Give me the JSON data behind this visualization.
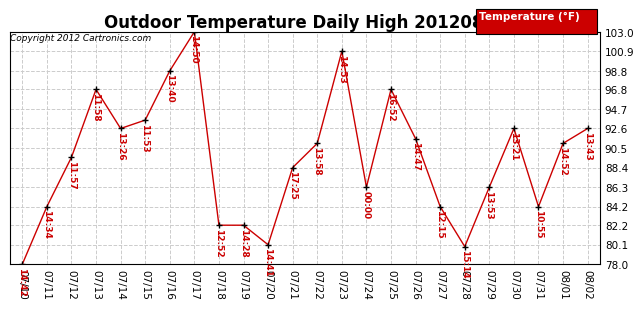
{
  "title": "Outdoor Temperature Daily High 20120803",
  "copyright": "Copyright 2012 Cartronics.com",
  "legend_label": "Temperature (°F)",
  "x_labels": [
    "07/10",
    "07/11",
    "07/12",
    "07/13",
    "07/14",
    "07/15",
    "07/16",
    "07/17",
    "07/18",
    "07/19",
    "07/20",
    "07/21",
    "07/22",
    "07/23",
    "07/24",
    "07/25",
    "07/26",
    "07/27",
    "07/28",
    "07/29",
    "07/30",
    "07/31",
    "08/01",
    "08/02"
  ],
  "y_values": [
    78.0,
    84.2,
    89.5,
    96.8,
    92.6,
    93.5,
    98.8,
    103.0,
    82.2,
    82.2,
    80.1,
    88.4,
    91.0,
    100.9,
    86.3,
    96.8,
    91.5,
    84.2,
    79.9,
    86.3,
    92.6,
    84.2,
    91.0,
    92.6
  ],
  "time_labels": [
    "14:42",
    "14:34",
    "11:57",
    "11:58",
    "13:26",
    "11:53",
    "13:40",
    "14:50",
    "12:52",
    "14:28",
    "14:41",
    "17:25",
    "13:58",
    "14:53",
    "00:00",
    "16:52",
    "14:47",
    "12:15",
    "15:14",
    "13:53",
    "13:21",
    "10:55",
    "14:52",
    "13:43"
  ],
  "line_color": "#cc0000",
  "marker_color": "#000000",
  "bg_color": "#ffffff",
  "grid_color": "#cccccc",
  "ylim_min": 78.0,
  "ylim_max": 103.0,
  "yticks": [
    78.0,
    80.1,
    82.2,
    84.2,
    86.3,
    88.4,
    90.5,
    92.6,
    94.7,
    96.8,
    98.8,
    100.9,
    103.0
  ],
  "title_fontsize": 12,
  "label_fontsize": 6.5,
  "tick_fontsize": 7.5
}
